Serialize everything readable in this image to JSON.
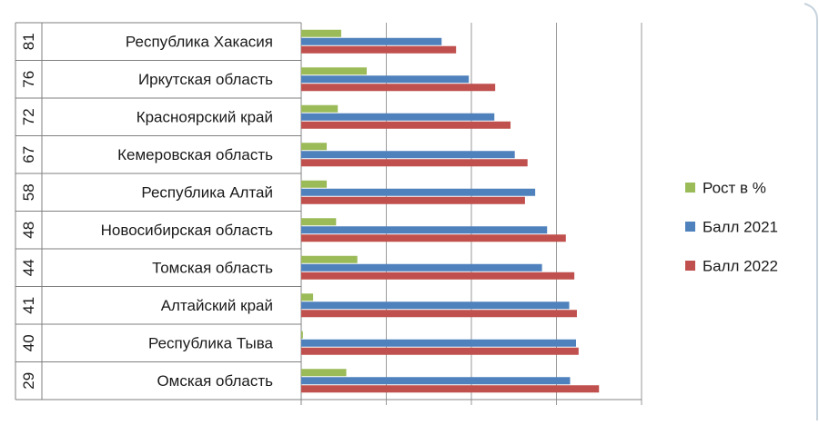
{
  "chart_data": {
    "type": "bar",
    "orientation": "horizontal",
    "title": "",
    "categories": [
      {
        "rank": "81",
        "name": "Республика Хакасия"
      },
      {
        "rank": "76",
        "name": "Иркутская область"
      },
      {
        "rank": "72",
        "name": "Красноярский край"
      },
      {
        "rank": "67",
        "name": "Кемеровская область"
      },
      {
        "rank": "58",
        "name": "Республика Алтай"
      },
      {
        "rank": "48",
        "name": "Новосибирская область"
      },
      {
        "rank": "44",
        "name": "Томская область"
      },
      {
        "rank": "41",
        "name": "Алтайский край"
      },
      {
        "rank": "40",
        "name": "Республика Тыва"
      },
      {
        "rank": "29",
        "name": "Омская область"
      }
    ],
    "series": [
      {
        "name": "Рост в %",
        "color": "#9BBB59",
        "values": [
          4.7,
          7.7,
          4.3,
          3.0,
          3.0,
          4.1,
          6.6,
          1.4,
          0.2,
          5.3
        ]
      },
      {
        "name": "Балл 2021",
        "color": "#4F81BD",
        "values": [
          16.5,
          19.7,
          22.7,
          25.1,
          27.5,
          28.9,
          28.3,
          31.5,
          32.3,
          31.6
        ]
      },
      {
        "name": "Балл 2022",
        "color": "#C0504D",
        "values": [
          18.2,
          22.8,
          24.6,
          26.6,
          26.3,
          31.1,
          32.1,
          32.4,
          32.6,
          35.0
        ]
      }
    ],
    "xlim": [
      0,
      40
    ],
    "x_gridlines": [
      0,
      10,
      20,
      30,
      40
    ],
    "grid": true,
    "legend_position": "right"
  }
}
